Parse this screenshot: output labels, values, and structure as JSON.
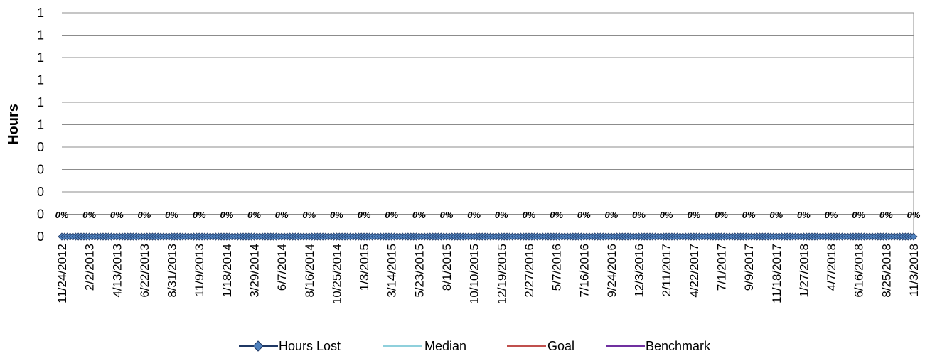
{
  "chart_data": {
    "type": "line",
    "ylabel": "Hours",
    "xlabel": "",
    "y_tick_labels": [
      "0",
      "0",
      "0",
      "0",
      "0",
      "1",
      "1",
      "1",
      "1",
      "1",
      "1"
    ],
    "x_tick_labels": [
      "11/24/2012",
      "2/2/2013",
      "4/13/2013",
      "6/22/2013",
      "8/31/2013",
      "11/9/2013",
      "1/18/2014",
      "3/29/2014",
      "6/7/2014",
      "8/16/2014",
      "10/25/2014",
      "1/3/2015",
      "3/14/2015",
      "5/23/2015",
      "8/1/2015",
      "10/10/2015",
      "12/19/2015",
      "2/27/2016",
      "5/7/2016",
      "7/16/2016",
      "9/24/2016",
      "12/3/2016",
      "2/11/2017",
      "4/22/2017",
      "7/1/2017",
      "9/9/2017",
      "11/18/2017",
      "1/27/2018",
      "4/7/2018",
      "6/16/2018",
      "8/25/2018",
      "11/3/2018"
    ],
    "x_start": "11/24/2012",
    "x_interval_days": 7,
    "point_count": 311,
    "data_label_value": "0%",
    "data_label_count": 32,
    "grid": true,
    "legend_position": "bottom",
    "series": [
      {
        "name": "Hours Lost",
        "value": 0,
        "color": "#1f3864",
        "marker": "diamond",
        "marker_fill": "#4f81bd"
      },
      {
        "name": "Median",
        "value": 0,
        "color": "#8fd0dc"
      },
      {
        "name": "Goal",
        "value": 0,
        "color": "#c0504d"
      },
      {
        "name": "Benchmark",
        "value": 0,
        "color": "#7030a0"
      }
    ]
  }
}
